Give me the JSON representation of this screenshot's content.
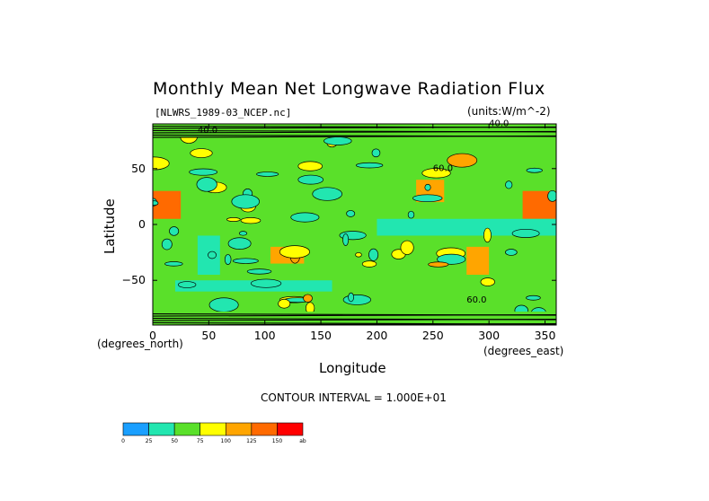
{
  "chart_data": {
    "type": "heatmap",
    "title": "Monthly Mean Net Longwave Radiation Flux",
    "subtitle_left": "[NLWRS_1989-03_NCEP.nc]",
    "subtitle_right": "(units:W/m^-2)",
    "xlabel": "Longitude",
    "ylabel": "Latitude",
    "x_units": "(degrees_east)",
    "y_units": "(degrees_north)",
    "xlim": [
      0,
      360
    ],
    "ylim": [
      -90,
      90
    ],
    "xticks": [
      "0",
      "50",
      "100",
      "150",
      "200",
      "250",
      "300",
      "350"
    ],
    "yticks": [
      "50",
      "0",
      "−50"
    ],
    "contour_interval": "CONTOUR INTERVAL = 1.000E+01",
    "contour_labels": [
      "40.0",
      "40.0",
      "60.0",
      "60.0"
    ],
    "colorbar": {
      "ticks": [
        "0",
        "25",
        "50",
        "75",
        "100",
        "125",
        "150",
        "ab"
      ],
      "colors": [
        "#1a9fff",
        "#22e6b0",
        "#5ae02a",
        "#ffff00",
        "#ffa500",
        "#ff6a00",
        "#ff0000"
      ]
    },
    "regions": [
      {
        "lon": [
          0,
          360
        ],
        "lat": [
          -90,
          90
        ],
        "level": 2
      },
      {
        "lon": [
          0,
          25
        ],
        "lat": [
          5,
          30
        ],
        "level": 5
      },
      {
        "lon": [
          330,
          360
        ],
        "lat": [
          5,
          30
        ],
        "level": 5
      },
      {
        "lon": [
          235,
          260
        ],
        "lat": [
          20,
          40
        ],
        "level": 4
      },
      {
        "lon": [
          280,
          300
        ],
        "lat": [
          -45,
          -20
        ],
        "level": 4
      },
      {
        "lon": [
          105,
          135
        ],
        "lat": [
          -35,
          -20
        ],
        "level": 4
      },
      {
        "lon": [
          40,
          60
        ],
        "lat": [
          -45,
          -10
        ],
        "level": 1
      },
      {
        "lon": [
          200,
          360
        ],
        "lat": [
          -10,
          5
        ],
        "level": 1
      },
      {
        "lon": [
          20,
          160
        ],
        "lat": [
          -60,
          -50
        ],
        "level": 1
      }
    ]
  }
}
